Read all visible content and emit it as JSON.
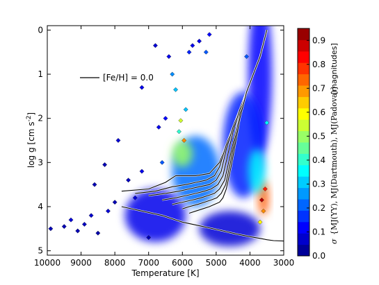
{
  "chart_data": {
    "type": "heatmap",
    "title": "",
    "xlabel": "Temperature   [K]",
    "ylabel": "log g   [cm s",
    "ylabel_sup": "-2",
    "ylabel_close": "]",
    "xlim": [
      10000,
      3000
    ],
    "ylim": [
      5.1,
      -0.1
    ],
    "x_ticks": [
      10000,
      9000,
      8000,
      7000,
      6000,
      5000,
      4000,
      3000
    ],
    "x_tick_labels": [
      "10000",
      "9000",
      "8000",
      "7000",
      "6000",
      "5000",
      "4000",
      "3000"
    ],
    "y_ticks": [
      0,
      1,
      2,
      3,
      4,
      5
    ],
    "y_tick_labels": [
      "0",
      "1",
      "2",
      "3",
      "4",
      "5"
    ],
    "legend": {
      "position": "upper-left",
      "entries": [
        {
          "label": "[Fe/H] = 0.0",
          "color": "#000000"
        }
      ]
    },
    "colorbar": {
      "label_prefix": "σ",
      "label_args": "M",
      "label_expr": "{MJ(YY), MJ(Dartmouth), MJ(Padova)}",
      "label_units": "[magnitudes]",
      "range": [
        0.0,
        0.95
      ],
      "ticks": [
        0.0,
        0.1,
        0.2,
        0.3,
        0.4,
        0.5,
        0.6,
        0.7,
        0.8,
        0.9
      ],
      "tick_labels": [
        "0.0",
        "0.1",
        "0.2",
        "0.3",
        "0.4",
        "0.5",
        "0.6",
        "0.7",
        "0.8",
        "0.9"
      ],
      "colormap": "jet",
      "levels": 20
    },
    "density_regions": [
      {
        "teff": 3700,
        "logg": 1.0,
        "value": 0.12,
        "spread_teff": 350,
        "spread_logg": 1.8
      },
      {
        "teff": 4200,
        "logg": 2.6,
        "value": 0.15,
        "spread_teff": 600,
        "spread_logg": 1.2
      },
      {
        "teff": 4600,
        "logg": 4.5,
        "value": 0.08,
        "spread_teff": 900,
        "spread_logg": 0.4
      },
      {
        "teff": 5600,
        "logg": 3.2,
        "value": 0.22,
        "spread_teff": 700,
        "spread_logg": 0.8
      },
      {
        "teff": 6000,
        "logg": 2.8,
        "value": 0.5,
        "spread_teff": 300,
        "spread_logg": 0.3
      },
      {
        "teff": 6800,
        "logg": 4.2,
        "value": 0.1,
        "spread_teff": 900,
        "spread_logg": 0.6
      },
      {
        "teff": 3600,
        "logg": 3.8,
        "value": 0.75,
        "spread_teff": 150,
        "spread_logg": 0.4
      },
      {
        "teff": 3800,
        "logg": 3.2,
        "value": 0.35,
        "spread_teff": 250,
        "spread_logg": 0.5
      }
    ],
    "isochrone_ages_note": "",
    "isochrones": [
      {
        "teff": [
          7800,
          7000,
          6500,
          6200,
          6000,
          5600,
          5200,
          4900,
          4700,
          4500,
          4300,
          4100,
          3900,
          3700,
          3600,
          3500
        ],
        "logg": [
          3.65,
          3.6,
          3.45,
          3.3,
          3.3,
          3.3,
          3.25,
          3.0,
          2.6,
          2.2,
          1.8,
          1.4,
          1.0,
          0.6,
          0.3,
          0.0
        ]
      },
      {
        "teff": [
          7400,
          6800,
          6300,
          5900,
          5600,
          5300,
          5050,
          4900,
          4700,
          4500,
          4300,
          4100,
          3900,
          3700,
          3500
        ],
        "logg": [
          3.7,
          3.65,
          3.55,
          3.5,
          3.45,
          3.4,
          3.3,
          3.1,
          2.6,
          2.2,
          1.8,
          1.4,
          1.0,
          0.6,
          0.0
        ]
      },
      {
        "teff": [
          7000,
          6500,
          6100,
          5800,
          5500,
          5200,
          5000,
          4850,
          4700,
          4500,
          4300,
          4100,
          3900,
          3700,
          3500
        ],
        "logg": [
          3.75,
          3.7,
          3.65,
          3.6,
          3.55,
          3.5,
          3.4,
          3.2,
          2.7,
          2.2,
          1.8,
          1.4,
          1.0,
          0.6,
          0.0
        ]
      },
      {
        "teff": [
          6600,
          6200,
          5900,
          5600,
          5350,
          5150,
          4950,
          4800,
          4650,
          4500,
          4300,
          4100,
          3900,
          3700,
          3500
        ],
        "logg": [
          3.85,
          3.8,
          3.75,
          3.7,
          3.65,
          3.6,
          3.5,
          3.3,
          2.8,
          2.3,
          1.8,
          1.4,
          1.0,
          0.6,
          0.0
        ]
      },
      {
        "teff": [
          6300,
          6000,
          5700,
          5450,
          5250,
          5050,
          4900,
          4750,
          4600,
          4450,
          4300,
          4100,
          3900,
          3700,
          3500
        ],
        "logg": [
          3.95,
          3.9,
          3.85,
          3.8,
          3.75,
          3.7,
          3.6,
          3.4,
          2.9,
          2.4,
          1.9,
          1.4,
          1.0,
          0.6,
          0.0
        ]
      },
      {
        "teff": [
          6000,
          5800,
          5550,
          5350,
          5150,
          4980,
          4850,
          4720,
          4580,
          4450,
          4300,
          4100,
          3900,
          3700,
          3500
        ],
        "logg": [
          4.05,
          4.0,
          3.95,
          3.9,
          3.85,
          3.8,
          3.7,
          3.5,
          3.0,
          2.5,
          1.9,
          1.4,
          1.0,
          0.6,
          0.0
        ]
      },
      {
        "teff": [
          5800,
          5600,
          5400,
          5200,
          5050,
          4900,
          4800,
          4700,
          4560,
          4440,
          4300,
          4100,
          3900,
          3700,
          3500
        ],
        "logg": [
          4.15,
          4.1,
          4.05,
          4.0,
          3.95,
          3.9,
          3.8,
          3.6,
          3.1,
          2.6,
          2.0,
          1.4,
          1.0,
          0.6,
          0.0
        ]
      }
    ],
    "main_sequence": {
      "teff": [
        7800,
        7200,
        6600,
        6000,
        5400,
        4800,
        4400,
        4000,
        3700,
        3500,
        3300,
        3000
      ],
      "logg": [
        4.0,
        4.1,
        4.2,
        4.35,
        4.45,
        4.55,
        4.62,
        4.68,
        4.72,
        4.75,
        4.77,
        4.78
      ]
    },
    "scatter_points": [
      {
        "teff": 9900,
        "logg": 4.5,
        "value": 0.05
      },
      {
        "teff": 9500,
        "logg": 4.45,
        "value": 0.05
      },
      {
        "teff": 9300,
        "logg": 4.3,
        "value": 0.08
      },
      {
        "teff": 9100,
        "logg": 4.55,
        "value": 0.05
      },
      {
        "teff": 8900,
        "logg": 4.4,
        "value": 0.06
      },
      {
        "teff": 8700,
        "logg": 4.2,
        "value": 0.07
      },
      {
        "teff": 8500,
        "logg": 4.6,
        "value": 0.04
      },
      {
        "teff": 8300,
        "logg": 3.05,
        "value": 0.05
      },
      {
        "teff": 8200,
        "logg": 4.1,
        "value": 0.08
      },
      {
        "teff": 8000,
        "logg": 3.9,
        "value": 0.05
      },
      {
        "teff": 7900,
        "logg": 2.5,
        "value": 0.08
      },
      {
        "teff": 7600,
        "logg": 3.4,
        "value": 0.06
      },
      {
        "teff": 7200,
        "logg": 3.2,
        "value": 0.1
      },
      {
        "teff": 7000,
        "logg": 4.7,
        "value": 0.05
      },
      {
        "teff": 6700,
        "logg": 2.2,
        "value": 0.1
      },
      {
        "teff": 6500,
        "logg": 2.0,
        "value": 0.12
      },
      {
        "teff": 6300,
        "logg": 1.0,
        "value": 0.25
      },
      {
        "teff": 6200,
        "logg": 1.35,
        "value": 0.3
      },
      {
        "teff": 6100,
        "logg": 2.3,
        "value": 0.4
      },
      {
        "teff": 6050,
        "logg": 2.05,
        "value": 0.55
      },
      {
        "teff": 5950,
        "logg": 2.5,
        "value": 0.7
      },
      {
        "teff": 5900,
        "logg": 1.8,
        "value": 0.3
      },
      {
        "teff": 5800,
        "logg": 0.5,
        "value": 0.15
      },
      {
        "teff": 5700,
        "logg": 0.35,
        "value": 0.1
      },
      {
        "teff": 5500,
        "logg": 0.25,
        "value": 0.1
      },
      {
        "teff": 5300,
        "logg": 0.5,
        "value": 0.2
      },
      {
        "teff": 5200,
        "logg": 0.1,
        "value": 0.12
      },
      {
        "teff": 6400,
        "logg": 0.6,
        "value": 0.1
      },
      {
        "teff": 6800,
        "logg": 0.35,
        "value": 0.08
      },
      {
        "teff": 7200,
        "logg": 1.3,
        "value": 0.1
      },
      {
        "teff": 3650,
        "logg": 3.85,
        "value": 0.9
      },
      {
        "teff": 3700,
        "logg": 4.35,
        "value": 0.6
      },
      {
        "teff": 3550,
        "logg": 3.6,
        "value": 0.8
      },
      {
        "teff": 3600,
        "logg": 4.1,
        "value": 0.7
      },
      {
        "teff": 3500,
        "logg": 2.1,
        "value": 0.35
      },
      {
        "teff": 4100,
        "logg": 0.6,
        "value": 0.2
      },
      {
        "teff": 4500,
        "logg": 2.5,
        "value": 0.15
      },
      {
        "teff": 6600,
        "logg": 3.0,
        "value": 0.2
      },
      {
        "teff": 7400,
        "logg": 3.8,
        "value": 0.08
      },
      {
        "teff": 8600,
        "logg": 3.5,
        "value": 0.05
      }
    ]
  }
}
